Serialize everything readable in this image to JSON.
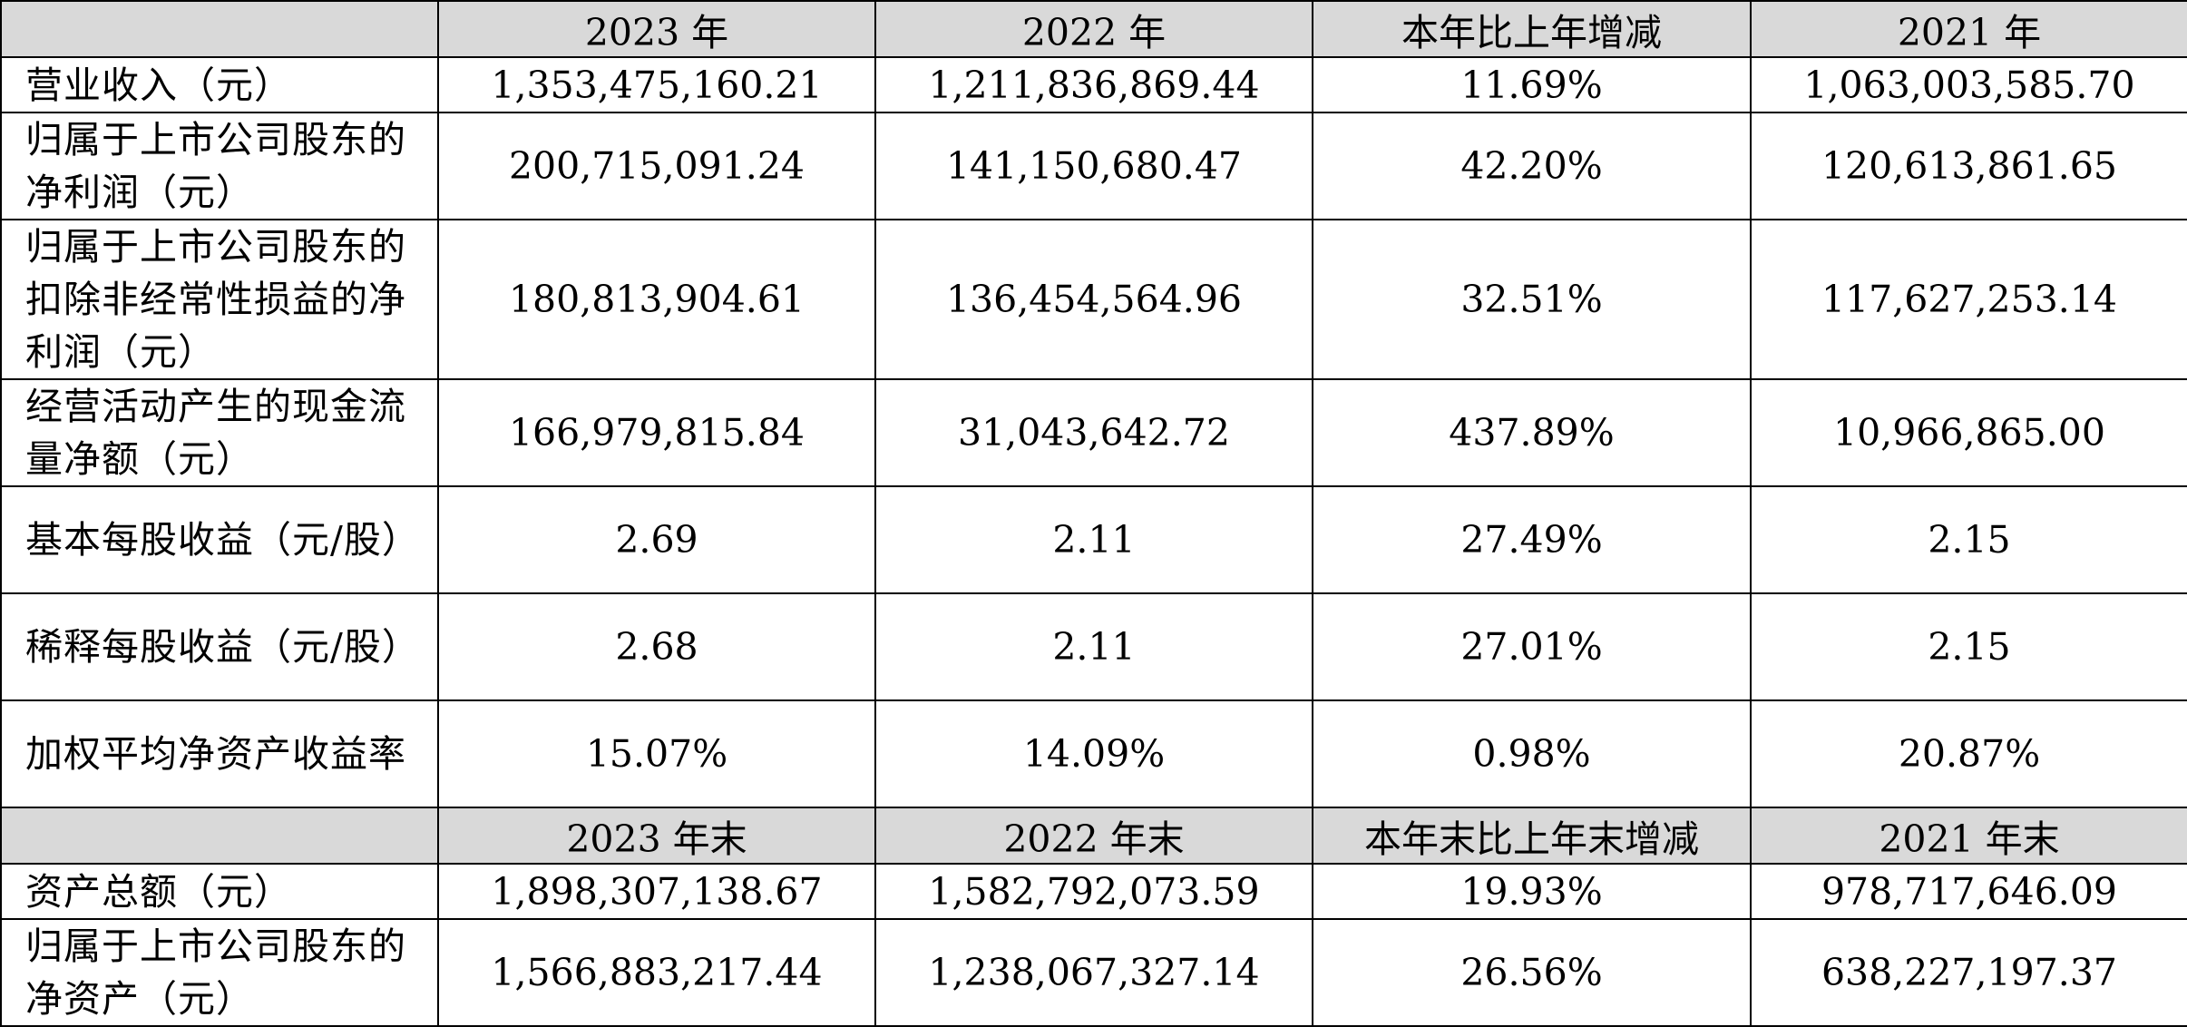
{
  "header1": [
    "",
    "2023 年",
    "2022 年",
    "本年比上年增减",
    "2021 年"
  ],
  "rows1": [
    {
      "label": "营业收入（元）",
      "values": [
        "1,353,475,160.21",
        "1,211,836,869.44",
        "11.69%",
        "1,063,003,585.70"
      ]
    },
    {
      "label": "归属于上市公司股东的净利润（元）",
      "values": [
        "200,715,091.24",
        "141,150,680.47",
        "42.20%",
        "120,613,861.65"
      ]
    },
    {
      "label": "归属于上市公司股东的扣除非经常性损益的净利润（元）",
      "values": [
        "180,813,904.61",
        "136,454,564.96",
        "32.51%",
        "117,627,253.14"
      ]
    },
    {
      "label": "经营活动产生的现金流量净额（元）",
      "values": [
        "166,979,815.84",
        "31,043,642.72",
        "437.89%",
        "10,966,865.00"
      ]
    },
    {
      "label": "基本每股收益（元/股）",
      "values": [
        "2.69",
        "2.11",
        "27.49%",
        "2.15"
      ]
    },
    {
      "label": "稀释每股收益（元/股）",
      "values": [
        "2.68",
        "2.11",
        "27.01%",
        "2.15"
      ]
    },
    {
      "label": "加权平均净资产收益率",
      "values": [
        "15.07%",
        "14.09%",
        "0.98%",
        "20.87%"
      ]
    }
  ],
  "header2": [
    "",
    "2023 年末",
    "2022 年末",
    "本年末比上年末增减",
    "2021 年末"
  ],
  "rows2": [
    {
      "label": "资产总额（元）",
      "values": [
        "1,898,307,138.67",
        "1,582,792,073.59",
        "19.93%",
        "978,717,646.09"
      ]
    },
    {
      "label": "归属于上市公司股东的净资产（元）",
      "values": [
        "1,566,883,217.44",
        "1,238,067,327.14",
        "26.56%",
        "638,227,197.37"
      ]
    }
  ]
}
